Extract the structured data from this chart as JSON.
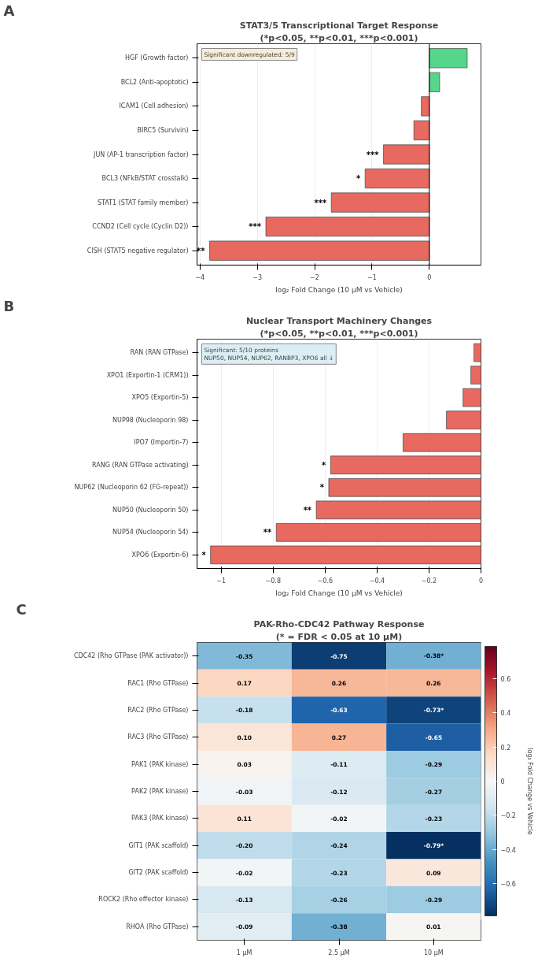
{
  "chart_data": [
    {
      "type": "bar",
      "orientation": "horizontal",
      "title": "STAT3/5 Transcriptional Target Response",
      "subtitle": "(*p<0.05, **p<0.01, ***p<0.001)",
      "xlabel": "log₂ Fold Change (10 µM vs Vehicle)",
      "categories": [
        "HGF (Growth factor)",
        "BCL2 (Anti-apoptotic)",
        "ICAM1 (Cell adhesion)",
        "BIRC5 (Survivin)",
        "JUN (AP-1 transcription factor)",
        "BCL3 (NFkB/STAT crosstalk)",
        "STAT1 (STAT family member)",
        "CCND2 (Cell cycle (Cyclin D2))",
        "CISH (STAT5 negative regulator)"
      ],
      "values": [
        0.66,
        0.18,
        -0.14,
        -0.27,
        -0.8,
        -1.12,
        -1.71,
        -2.85,
        -3.83
      ],
      "colors": [
        "#55d68a",
        "#55d68a",
        "#e8695f",
        "#e8695f",
        "#e8695f",
        "#e8695f",
        "#e8695f",
        "#e8695f",
        "#e8695f"
      ],
      "value_labels": [
        null,
        null,
        null,
        null,
        "***",
        "*",
        "***",
        "***",
        "**"
      ],
      "xlim": [
        -4.05,
        0.9
      ],
      "xticks": [
        -4,
        -3,
        -2,
        -1,
        0
      ],
      "grid": "x",
      "ref_lines": [
        {
          "axis": "x",
          "value": 0,
          "color": "#000000"
        }
      ],
      "annotations": [
        "A",
        "Significant downregulated: 5/9"
      ]
    },
    {
      "type": "bar",
      "orientation": "horizontal",
      "title": "Nuclear Transport Machinery Changes",
      "subtitle": "(*p<0.05, **p<0.01, ***p<0.001)",
      "xlabel": "log₂ Fold Change (10 µM vs Vehicle)",
      "categories": [
        "RAN (RAN GTPase)",
        "XPO1 (Exportin-1 (CRM1))",
        "XPO5 (Exportin-5)",
        "NUP98 (Nucleoporin 98)",
        "IPO7 (Importin-7)",
        "RANG (RAN GTPase activating)",
        "NUP62 (Nucleoporin 62 (FG-repeat))",
        "NUP50 (Nucleoporin 50)",
        "NUP54 (Nucleoporin 54)",
        "XPO6 (Exportin-6)"
      ],
      "values": [
        -0.027,
        -0.039,
        -0.069,
        -0.133,
        -0.3,
        -0.579,
        -0.586,
        -0.634,
        -0.788,
        -1.041
      ],
      "colors": [
        "#e8695f",
        "#e8695f",
        "#e8695f",
        "#e8695f",
        "#e8695f",
        "#e8695f",
        "#e8695f",
        "#e8695f",
        "#e8695f",
        "#e8695f"
      ],
      "value_labels": [
        null,
        null,
        null,
        null,
        null,
        "*",
        "*",
        "**",
        "**",
        "*"
      ],
      "xlim": [
        -1.093,
        0.0
      ],
      "xticks": [
        -1.0,
        -0.8,
        -0.6,
        -0.4,
        -0.2,
        0.0
      ],
      "grid": "x",
      "annotations": [
        "B",
        "Significant: 5/10 proteins\nNUP50, NUP54, NUP62, RANBP3, XPO6 all ↓"
      ]
    },
    {
      "type": "heatmap",
      "title": "PAK-Rho-CDC42 Pathway Response",
      "subtitle": "(* = FDR < 0.05 at 10 µM)",
      "clabel": "log₂ Fold Change vs Vehicle",
      "categories": [
        "1 µM",
        "2.5 µM",
        "10 µM"
      ],
      "y_categories": [
        "CDC42 (Rho GTPase (PAK activator))",
        "RAC1 (Rho GTPase)",
        "RAC2 (Rho GTPase)",
        "RAC3 (Rho GTPase)",
        "PAK1 (PAK kinase)",
        "PAK2 (PAK kinase)",
        "PAK3 (PAK kinase)",
        "GIT1 (PAK scaffold)",
        "GIT2 (PAK scaffold)",
        "ROCK2 (Rho effector kinase)",
        "RHOA (Rho GTPase)"
      ],
      "cells": [
        [
          -0.35,
          -0.75,
          -0.38
        ],
        [
          0.17,
          0.26,
          0.26
        ],
        [
          -0.18,
          -0.63,
          -0.73
        ],
        [
          0.1,
          0.27,
          -0.65
        ],
        [
          0.03,
          -0.11,
          -0.29
        ],
        [
          -0.03,
          -0.12,
          -0.27
        ],
        [
          0.11,
          -0.02,
          -0.23
        ],
        [
          -0.2,
          -0.24,
          -0.79
        ],
        [
          -0.02,
          -0.23,
          0.09
        ],
        [
          -0.13,
          -0.26,
          -0.29
        ],
        [
          -0.09,
          -0.38,
          0.01
        ]
      ],
      "cell_labels": [
        [
          "-0.35",
          "-0.75",
          "-0.38*"
        ],
        [
          "0.17",
          "0.26",
          "0.26"
        ],
        [
          "-0.18",
          "-0.63",
          "-0.73*"
        ],
        [
          "0.10",
          "0.27",
          "-0.65"
        ],
        [
          "0.03",
          "-0.11",
          "-0.29"
        ],
        [
          "-0.03",
          "-0.12",
          "-0.27"
        ],
        [
          "0.11",
          "-0.02",
          "-0.23"
        ],
        [
          "-0.20",
          "-0.24",
          "-0.79*"
        ],
        [
          "-0.02",
          "-0.23",
          "0.09"
        ],
        [
          "-0.13",
          "-0.26",
          "-0.29"
        ],
        [
          "-0.09",
          "-0.38",
          "0.01"
        ]
      ],
      "clim": [
        -0.79,
        0.79
      ],
      "cticks": [
        -0.6,
        -0.4,
        -0.2,
        0.0,
        0.2,
        0.4,
        0.6
      ],
      "annotations": [
        "C"
      ]
    }
  ]
}
